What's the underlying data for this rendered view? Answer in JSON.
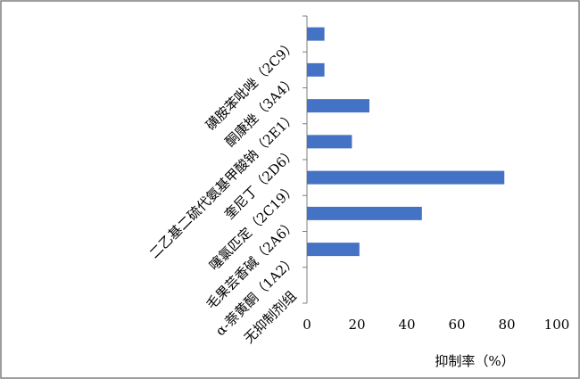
{
  "chart_data": {
    "type": "barh",
    "x_label": "抑制率（%）",
    "categories": [
      "磺胺苯吡唑（2C9）",
      "酮康挫（3A4）",
      "二乙基二硫代氨基甲酸钠（2E1）",
      "奎尼丁（2D6）",
      "噻氯匹定（2C19）",
      "毛果芸香碱（2A6）",
      "α-萘黄酮（1A2）",
      "无抑制剂组"
    ],
    "values": [
      7,
      7,
      25,
      18,
      79,
      46,
      21,
      0
    ],
    "color": "#4472c4",
    "xlim": [
      0,
      100
    ],
    "xticks": [
      0,
      20,
      40,
      60,
      80,
      100
    ]
  }
}
